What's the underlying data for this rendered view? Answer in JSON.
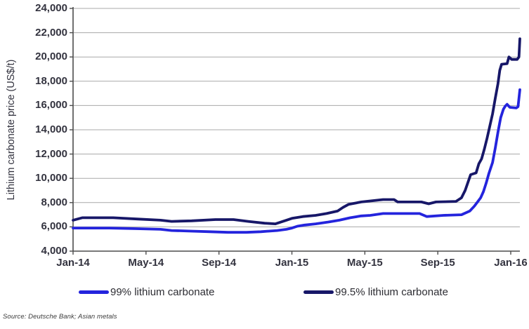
{
  "chart_data": {
    "type": "line",
    "title": "",
    "ylabel": "Lithium carbonate price (US$/t)",
    "xlabel": "",
    "grid": "horizontal-only",
    "legend_position": "bottom",
    "source": "Source: Deutsche Bank; Asian metals",
    "y_range": [
      4000,
      24000
    ],
    "y_tick_step": 2000,
    "y_ticks": {
      "values": [
        4000,
        6000,
        8000,
        10000,
        12000,
        14000,
        16000,
        18000,
        20000,
        22000,
        24000
      ],
      "labels": [
        "4,000",
        "6,000",
        "8,000",
        "10,000",
        "12,000",
        "14,000",
        "16,000",
        "18,000",
        "20,000",
        "22,000",
        "24,000"
      ]
    },
    "x_range_months": [
      0,
      24.5
    ],
    "x_ticks": {
      "months": [
        0,
        4,
        8,
        12,
        16,
        20,
        24
      ],
      "labels": [
        "Jan-14",
        "May-14",
        "Sep-14",
        "Jan-15",
        "May-15",
        "Sep-15",
        "Jan-16"
      ]
    },
    "axis_color": "#4d4d4d",
    "gridline_color": "#a8a8a8",
    "series": [
      {
        "name": "99% lithium carbonate",
        "color": "#2424dd",
        "x_unit": "months-after-Jan-2014",
        "points": [
          [
            0,
            5900
          ],
          [
            2.0,
            5900
          ],
          [
            3.5,
            5850
          ],
          [
            4.8,
            5800
          ],
          [
            5.4,
            5700
          ],
          [
            6.5,
            5650
          ],
          [
            7.5,
            5600
          ],
          [
            8.5,
            5550
          ],
          [
            9.5,
            5550
          ],
          [
            10.3,
            5600
          ],
          [
            11.2,
            5700
          ],
          [
            11.7,
            5800
          ],
          [
            12.0,
            5900
          ],
          [
            12.3,
            6050
          ],
          [
            12.7,
            6150
          ],
          [
            13.3,
            6250
          ],
          [
            14.0,
            6400
          ],
          [
            14.6,
            6550
          ],
          [
            15.2,
            6750
          ],
          [
            15.8,
            6900
          ],
          [
            16.3,
            6950
          ],
          [
            17.0,
            7100
          ],
          [
            19.0,
            7100
          ],
          [
            19.4,
            6850
          ],
          [
            20.3,
            6950
          ],
          [
            21.3,
            7000
          ],
          [
            21.75,
            7300
          ],
          [
            22.0,
            7700
          ],
          [
            22.2,
            8100
          ],
          [
            22.35,
            8400
          ],
          [
            22.5,
            8900
          ],
          [
            22.65,
            9600
          ],
          [
            22.8,
            10400
          ],
          [
            23.0,
            11300
          ],
          [
            23.15,
            12500
          ],
          [
            23.3,
            13800
          ],
          [
            23.45,
            15000
          ],
          [
            23.6,
            15700
          ],
          [
            23.7,
            15950
          ],
          [
            23.8,
            16100
          ],
          [
            23.95,
            15850
          ],
          [
            24.3,
            15800
          ],
          [
            24.4,
            15900
          ],
          [
            24.5,
            17300
          ]
        ]
      },
      {
        "name": "99.5% lithium carbonate",
        "color": "#171768",
        "x_unit": "months-after-Jan-2014",
        "points": [
          [
            0,
            6550
          ],
          [
            0.5,
            6750
          ],
          [
            2.2,
            6750
          ],
          [
            3.5,
            6650
          ],
          [
            4.8,
            6550
          ],
          [
            5.4,
            6450
          ],
          [
            6.5,
            6500
          ],
          [
            7.8,
            6600
          ],
          [
            8.8,
            6600
          ],
          [
            9.6,
            6450
          ],
          [
            10.5,
            6300
          ],
          [
            11.1,
            6250
          ],
          [
            11.7,
            6550
          ],
          [
            12.0,
            6700
          ],
          [
            12.6,
            6850
          ],
          [
            13.3,
            6950
          ],
          [
            13.9,
            7100
          ],
          [
            14.5,
            7300
          ],
          [
            14.8,
            7600
          ],
          [
            15.1,
            7850
          ],
          [
            15.8,
            8050
          ],
          [
            17.0,
            8250
          ],
          [
            17.6,
            8250
          ],
          [
            17.8,
            8050
          ],
          [
            19.1,
            8050
          ],
          [
            19.5,
            7900
          ],
          [
            19.9,
            8050
          ],
          [
            21.0,
            8100
          ],
          [
            21.3,
            8400
          ],
          [
            21.5,
            9000
          ],
          [
            21.8,
            10300
          ],
          [
            22.1,
            10450
          ],
          [
            22.25,
            11200
          ],
          [
            22.4,
            11600
          ],
          [
            22.55,
            12400
          ],
          [
            22.7,
            13300
          ],
          [
            22.85,
            14300
          ],
          [
            23.0,
            15300
          ],
          [
            23.15,
            16600
          ],
          [
            23.3,
            17800
          ],
          [
            23.4,
            18900
          ],
          [
            23.5,
            19400
          ],
          [
            23.8,
            19450
          ],
          [
            23.9,
            20000
          ],
          [
            24.05,
            19800
          ],
          [
            24.35,
            19800
          ],
          [
            24.45,
            20000
          ],
          [
            24.5,
            21500
          ]
        ]
      }
    ]
  }
}
